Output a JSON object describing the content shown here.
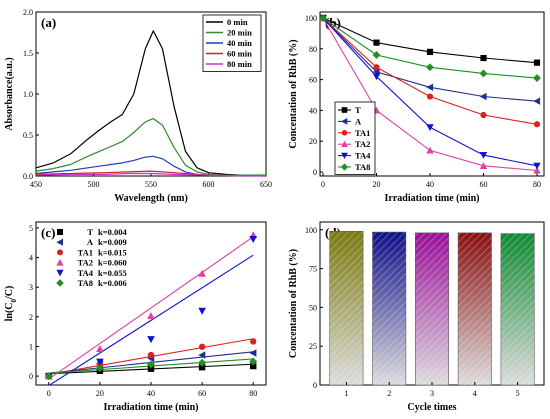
{
  "chart_data": [
    {
      "panel": "(a)",
      "type": "line",
      "xlabel": "Wavelength (nm)",
      "ylabel": "Absorbance(a.u.)",
      "xlim": [
        450,
        650
      ],
      "ylim": [
        0,
        2.0
      ],
      "xticks": [
        450,
        500,
        550,
        600,
        650
      ],
      "yticks": [
        0.0,
        0.5,
        1.0,
        1.5,
        2.0
      ],
      "legend_position": "top-right",
      "series": [
        {
          "name": "0 min",
          "color": "#000000",
          "x": [
            450,
            465,
            480,
            495,
            505,
            515,
            525,
            535,
            545,
            552,
            560,
            570,
            580,
            590,
            600,
            615,
            630,
            650
          ],
          "y": [
            0.1,
            0.16,
            0.27,
            0.45,
            0.56,
            0.66,
            0.75,
            1.0,
            1.55,
            1.77,
            1.55,
            0.85,
            0.3,
            0.1,
            0.04,
            0.02,
            0.01,
            0.01
          ]
        },
        {
          "name": "20 min",
          "color": "#2e8b2e",
          "x": [
            450,
            465,
            480,
            495,
            505,
            515,
            525,
            535,
            545,
            552,
            560,
            570,
            580,
            590,
            600,
            615,
            630,
            650
          ],
          "y": [
            0.06,
            0.09,
            0.14,
            0.24,
            0.3,
            0.36,
            0.42,
            0.53,
            0.66,
            0.7,
            0.62,
            0.35,
            0.13,
            0.05,
            0.02,
            0.01,
            0.01,
            0.01
          ]
        },
        {
          "name": "40 min",
          "color": "#1f3fbf",
          "x": [
            450,
            465,
            480,
            495,
            505,
            515,
            525,
            535,
            545,
            552,
            560,
            570,
            580,
            590,
            600,
            615,
            630,
            650
          ],
          "y": [
            0.03,
            0.05,
            0.07,
            0.1,
            0.12,
            0.14,
            0.16,
            0.19,
            0.23,
            0.24,
            0.21,
            0.12,
            0.05,
            0.02,
            0.01,
            0.01,
            0.0,
            0.0
          ]
        },
        {
          "name": "60 min",
          "color": "#cc2020",
          "x": [
            450,
            480,
            510,
            530,
            550,
            570,
            600,
            650
          ],
          "y": [
            0.02,
            0.03,
            0.04,
            0.05,
            0.06,
            0.04,
            0.01,
            0.0
          ]
        },
        {
          "name": "80 min",
          "color": "#cc33cc",
          "x": [
            450,
            480,
            510,
            530,
            550,
            570,
            600,
            650
          ],
          "y": [
            0.01,
            0.02,
            0.02,
            0.03,
            0.03,
            0.02,
            0.01,
            0.0
          ]
        }
      ]
    },
    {
      "panel": "(b)",
      "type": "line",
      "xlabel": "Irradiation time (min)",
      "ylabel": "Concentation of RhB (%)",
      "xlim": [
        0,
        80
      ],
      "ylim": [
        0,
        100
      ],
      "xticks": [
        0,
        20,
        40,
        60,
        80
      ],
      "yticks": [
        0,
        20,
        40,
        60,
        80,
        100
      ],
      "legend_position": "bottom-left",
      "x": [
        0,
        20,
        40,
        60,
        80
      ],
      "series": [
        {
          "name": "T",
          "color": "#000000",
          "marker": "square",
          "values": [
            100,
            84,
            78,
            74,
            71
          ]
        },
        {
          "name": "A",
          "color": "#1f2f8f",
          "marker": "triangle-left",
          "values": [
            100,
            65,
            55,
            49,
            46
          ]
        },
        {
          "name": "TA1",
          "color": "#e02020",
          "marker": "circle",
          "values": [
            100,
            68,
            49,
            37,
            31
          ]
        },
        {
          "name": "TA2",
          "color": "#e040a0",
          "marker": "triangle-up",
          "values": [
            100,
            40,
            14,
            4,
            1
          ]
        },
        {
          "name": "TA4",
          "color": "#1010d0",
          "marker": "triangle-down",
          "values": [
            100,
            62,
            29,
            11,
            4
          ]
        },
        {
          "name": "TA8",
          "color": "#209020",
          "marker": "diamond",
          "values": [
            100,
            76,
            68,
            64,
            61
          ]
        }
      ]
    },
    {
      "panel": "(c)",
      "type": "scatter",
      "xlabel": "Irradiation time (min)",
      "ylabel": "ln(C",
      "ylabel_sub": "0",
      "ylabel_tail": "/C)",
      "xlim": [
        -5,
        85
      ],
      "ylim": [
        -0.3,
        5.2
      ],
      "xticks": [
        0,
        20,
        40,
        60,
        80
      ],
      "yticks": [
        0,
        1,
        2,
        3,
        4,
        5
      ],
      "legend_position": "top-left",
      "x": [
        0,
        20,
        40,
        60,
        80
      ],
      "series": [
        {
          "name": "T",
          "k": "k=0.004",
          "color": "#000000",
          "marker": "square",
          "values": [
            0,
            0.18,
            0.25,
            0.3,
            0.34
          ]
        },
        {
          "name": "A",
          "k": "k=0.009",
          "color": "#1f2f8f",
          "marker": "triangle-left",
          "values": [
            0,
            0.43,
            0.6,
            0.71,
            0.78
          ]
        },
        {
          "name": "TA1",
          "k": "k=0.015",
          "color": "#e02020",
          "marker": "circle",
          "values": [
            0,
            0.39,
            0.71,
            0.99,
            1.17
          ]
        },
        {
          "name": "TA2",
          "k": "k=0.060",
          "color": "#e040a0",
          "marker": "triangle-up",
          "values": [
            0,
            0.92,
            2.03,
            3.46,
            4.76
          ]
        },
        {
          "name": "TA4",
          "k": "k=0.055",
          "color": "#1010d0",
          "marker": "triangle-down",
          "values": [
            0,
            0.48,
            1.24,
            2.2,
            4.62
          ]
        },
        {
          "name": "TA8",
          "k": "k=0.006",
          "color": "#209020",
          "marker": "diamond",
          "values": [
            0,
            0.27,
            0.39,
            0.45,
            0.49
          ]
        }
      ],
      "fit_lines": [
        {
          "color": "#000000",
          "y0": 0.08,
          "slope": 0.004
        },
        {
          "color": "#1f2f8f",
          "y0": 0.1,
          "slope": 0.009
        },
        {
          "color": "#e02020",
          "y0": 0.06,
          "slope": 0.015
        },
        {
          "color": "#e040a0",
          "y0": -0.1,
          "slope": 0.06
        },
        {
          "color": "#1010d0",
          "y0": -0.32,
          "slope": 0.055
        },
        {
          "color": "#209020",
          "y0": 0.1,
          "slope": 0.006
        }
      ]
    },
    {
      "panel": "(d)",
      "type": "bar",
      "xlabel": "Cycle times",
      "ylabel": "Concentation of RhB (%)",
      "ylim": [
        0,
        105
      ],
      "yticks": [
        0,
        25,
        50,
        75,
        100
      ],
      "categories": [
        "1",
        "2",
        "3",
        "4",
        "5"
      ],
      "values": [
        99,
        98.5,
        98,
        98,
        97.5
      ],
      "bar_top_colors": [
        "#7a7a10",
        "#10108a",
        "#9a109a",
        "#8a1010",
        "#108a30"
      ]
    }
  ]
}
